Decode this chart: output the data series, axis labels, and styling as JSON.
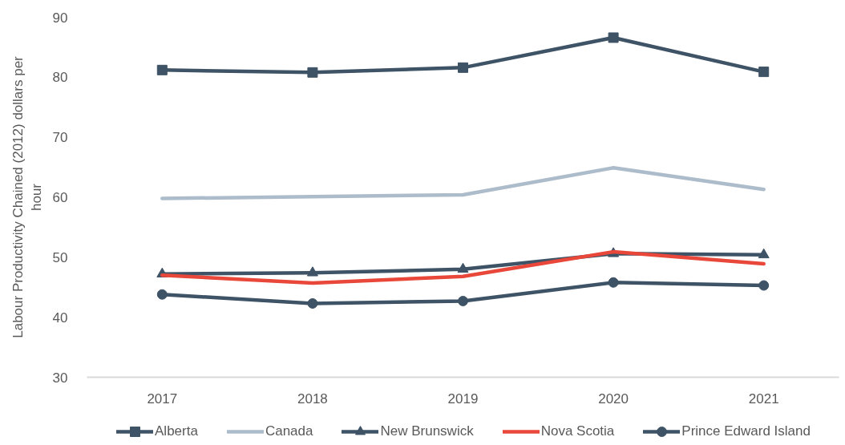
{
  "chart_data": {
    "type": "line",
    "ylabel": "Labour Productivity Chained (2012) dollars per hour",
    "categories": [
      "2017",
      "2018",
      "2019",
      "2020",
      "2021"
    ],
    "ylim": [
      30,
      90
    ],
    "yticks": [
      30,
      40,
      50,
      60,
      70,
      80,
      90
    ],
    "legend": "bottom",
    "line_style": "solid",
    "series": [
      {
        "name": "Alberta",
        "color": "#3e5366",
        "marker": "square",
        "values": [
          81.2,
          80.8,
          81.6,
          86.6,
          80.9
        ]
      },
      {
        "name": "Canada",
        "color": "#adbccb",
        "marker": "none",
        "values": [
          59.8,
          60.1,
          60.4,
          64.9,
          61.3
        ]
      },
      {
        "name": "New Brunswick",
        "color": "#3e5366",
        "marker": "triangle",
        "values": [
          47.2,
          47.4,
          48.0,
          50.6,
          50.4
        ]
      },
      {
        "name": "Nova Scotia",
        "color": "#e8473a",
        "marker": "none",
        "values": [
          47.0,
          45.7,
          46.8,
          50.9,
          48.9
        ]
      },
      {
        "name": "Prince Edward Island",
        "color": "#3e5366",
        "marker": "circle",
        "values": [
          43.8,
          42.3,
          42.7,
          45.8,
          45.3
        ]
      }
    ]
  }
}
